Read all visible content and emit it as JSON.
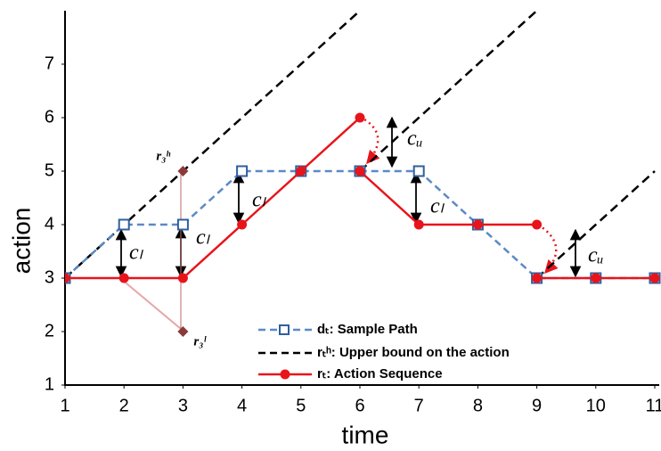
{
  "chart_data": {
    "type": "line",
    "xlabel": "time",
    "ylabel": "action",
    "xlim": [
      1,
      11
    ],
    "ylim": [
      1,
      8
    ],
    "xticks": [
      1,
      2,
      3,
      4,
      5,
      6,
      7,
      8,
      9,
      10,
      11
    ],
    "yticks": [
      1,
      2,
      3,
      4,
      5,
      6,
      7
    ],
    "series": [
      {
        "name": "dₜ: Sample Path",
        "color": "#5b8ac6",
        "dash": true,
        "marker": "square",
        "x": [
          1,
          2,
          3,
          4,
          5,
          6,
          7,
          8,
          9,
          10,
          11
        ],
        "values": [
          3,
          4,
          4,
          5,
          5,
          5,
          5,
          4,
          3,
          3,
          3
        ]
      },
      {
        "name": "rₜʰ: Upper bound on the action",
        "color": "#000000",
        "dash": true,
        "marker": "none",
        "x": [
          1,
          6,
          6,
          6,
          9,
          9,
          9,
          11
        ],
        "values": [
          3,
          8,
          null,
          5,
          8,
          null,
          3,
          5
        ]
      },
      {
        "name": "rₜ: Action Sequence",
        "color": "#e8141b",
        "dash": false,
        "marker": "circle",
        "x": [
          1,
          2,
          3,
          4,
          5,
          6,
          6,
          6,
          7,
          8,
          9,
          9,
          9,
          10,
          11
        ],
        "values": [
          3,
          3,
          3,
          4,
          5,
          6,
          null,
          5,
          4,
          4,
          4,
          null,
          3,
          3,
          3
        ]
      }
    ],
    "bound_points": {
      "color": "#8b3a3a",
      "x": [
        3,
        3
      ],
      "values": [
        5,
        2
      ],
      "labels": [
        "r₃ʰ",
        "r₃ˡ"
      ]
    },
    "annotations": [
      "cₗ",
      "cₗ",
      "cₗ",
      "cₗ",
      "cᵤ",
      "cᵤ"
    ]
  }
}
